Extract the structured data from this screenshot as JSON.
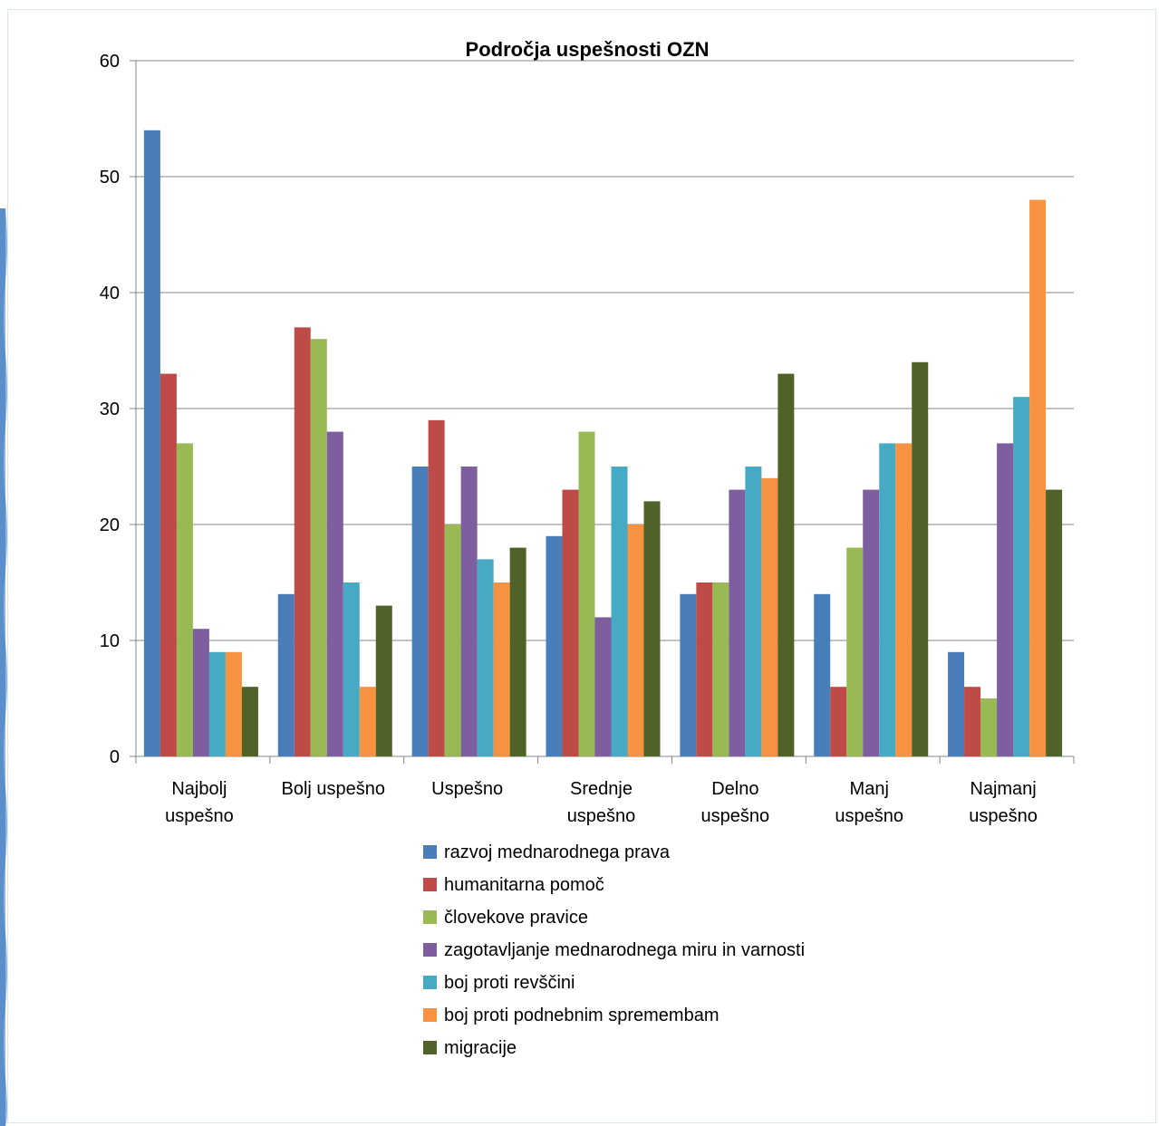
{
  "chart_data": {
    "type": "bar",
    "title": "Področja uspešnosti OZN",
    "xlabel": "",
    "ylabel": "",
    "ylim": [
      0,
      60
    ],
    "yticks": [
      0,
      10,
      20,
      30,
      40,
      50,
      60
    ],
    "grid": true,
    "legend_position": "bottom",
    "categories": [
      [
        "Najbolj",
        "uspešno"
      ],
      [
        "Bolj uspešno"
      ],
      [
        "Uspešno"
      ],
      [
        "Srednje",
        "uspešno"
      ],
      [
        "Delno",
        "uspešno"
      ],
      [
        "Manj",
        "uspešno"
      ],
      [
        "Najmanj",
        "uspešno"
      ]
    ],
    "series": [
      {
        "name": "razvoj mednarodnega prava",
        "color": "#4a7ebb",
        "values": [
          54,
          14,
          25,
          19,
          14,
          14,
          9
        ]
      },
      {
        "name": "humanitarna pomoč",
        "color": "#be4b48",
        "values": [
          33,
          37,
          29,
          23,
          15,
          6,
          6
        ]
      },
      {
        "name": "človekove pravice",
        "color": "#98b954",
        "values": [
          27,
          36,
          20,
          28,
          15,
          18,
          5
        ]
      },
      {
        "name": "zagotavljanje mednarodnega miru in varnosti",
        "color": "#7d5fa0",
        "values": [
          11,
          28,
          25,
          12,
          23,
          23,
          27
        ]
      },
      {
        "name": "boj proti revščini",
        "color": "#46aac5",
        "values": [
          9,
          15,
          17,
          25,
          25,
          27,
          31
        ]
      },
      {
        "name": "boj proti podnebnim spremembam",
        "color": "#f69240",
        "values": [
          9,
          6,
          15,
          20,
          24,
          27,
          48
        ]
      },
      {
        "name": "migracije",
        "color": "#4f6228",
        "values": [
          6,
          13,
          18,
          22,
          33,
          34,
          23
        ]
      }
    ]
  }
}
